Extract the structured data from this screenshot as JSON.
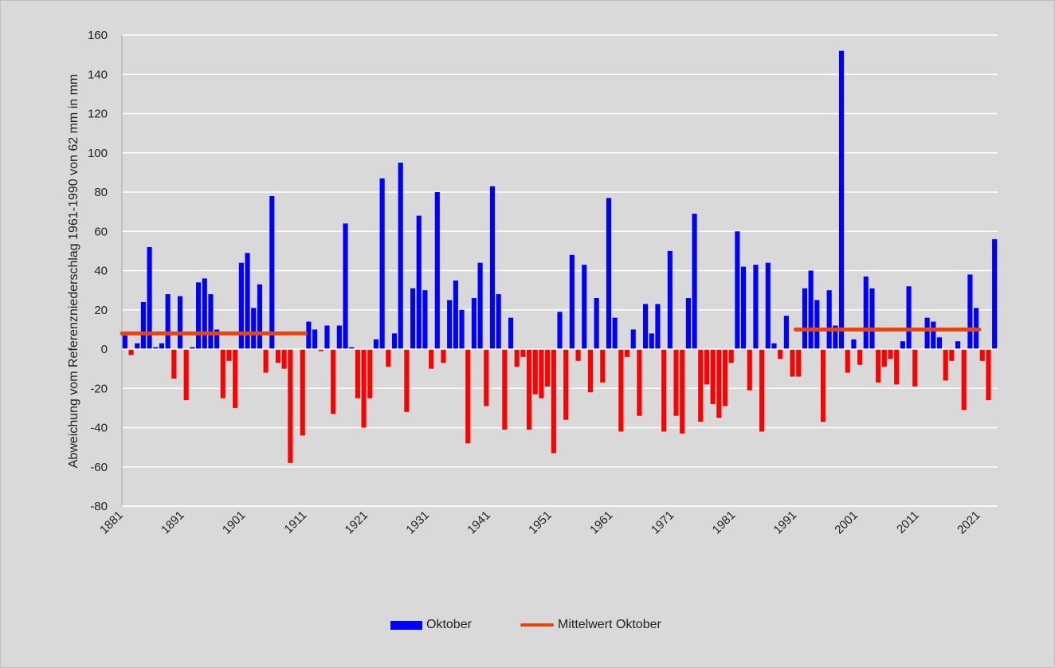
{
  "chart_data": {
    "type": "bar",
    "title": "",
    "xlabel": "",
    "ylabel": "Abweichung vom Referenzniederschlag 1961-1990 von 62 mm in mm",
    "ylim": [
      -80,
      160
    ],
    "yticks": [
      -80,
      -60,
      -40,
      -20,
      0,
      20,
      40,
      60,
      80,
      100,
      120,
      140,
      160
    ],
    "xticks": [
      "1881",
      "1891",
      "1901",
      "1911",
      "1921",
      "1931",
      "1941",
      "1951",
      "1961",
      "1971",
      "1981",
      "1991",
      "2001",
      "2011",
      "2021"
    ],
    "grid": "horizontal",
    "legend_position": "bottom",
    "colors": {
      "positive": "#0000ff",
      "negative": "#ff0000",
      "mean_line": "#e8440e",
      "background": "#d9d9d9",
      "grid": "#ffffff"
    },
    "series": [
      {
        "name": "Oktober",
        "type": "bar",
        "start_year": 1881,
        "values": [
          7,
          -3,
          3,
          24,
          52,
          1,
          3,
          28,
          -15,
          27,
          -26,
          1,
          34,
          36,
          28,
          10,
          -25,
          -6,
          -30,
          44,
          49,
          21,
          33,
          -12,
          78,
          -7,
          -10,
          -58,
          0,
          -44,
          14,
          10,
          -1,
          12,
          -33,
          12,
          64,
          1,
          -25,
          -40,
          -25,
          5,
          87,
          -9,
          8,
          95,
          -32,
          31,
          68,
          30,
          -10,
          80,
          -7,
          25,
          35,
          20,
          -48,
          26,
          44,
          -29,
          83,
          28,
          -41,
          16,
          -9,
          -4,
          -41,
          -23,
          -25,
          -19,
          -53,
          19,
          -36,
          48,
          -6,
          43,
          -22,
          26,
          -17,
          77,
          16,
          -42,
          -4,
          10,
          -34,
          23,
          8,
          23,
          -42,
          50,
          -34,
          -43,
          26,
          69,
          -37,
          -18,
          -28,
          -35,
          -29,
          -7,
          60,
          42,
          -21,
          43,
          -42,
          44,
          3,
          -5,
          17,
          -14,
          -14,
          31,
          40,
          25,
          -37,
          30,
          12,
          152,
          -12,
          5,
          -8,
          37,
          31,
          -17,
          -9,
          -5,
          -18,
          4,
          32,
          -19,
          0,
          16,
          14,
          6,
          -16,
          -6,
          4,
          -31,
          38,
          21,
          -6,
          -26,
          56
        ]
      },
      {
        "name": "Mittelwert Oktober",
        "type": "line",
        "segments": [
          {
            "from": 1881,
            "to": 1910,
            "value": 8
          },
          {
            "from": 1991,
            "to": 2020,
            "value": 10
          }
        ]
      }
    ]
  },
  "legend": {
    "bar_label": "Oktober",
    "line_label": "Mittelwert Oktober"
  }
}
